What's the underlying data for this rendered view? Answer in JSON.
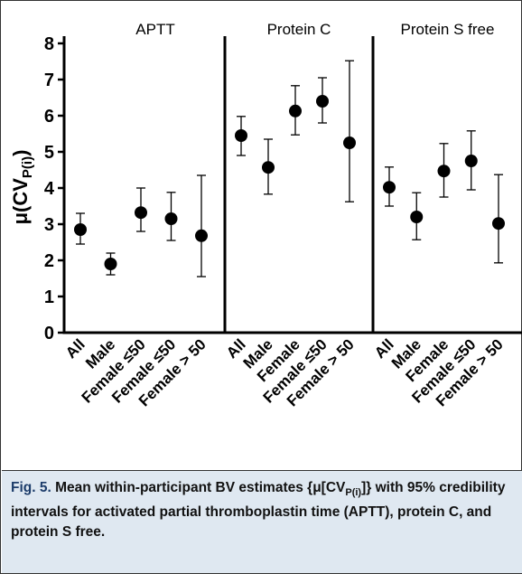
{
  "chart_data": {
    "type": "errorbar",
    "ylabel": {
      "text": "μ(CV",
      "sub": "P(i)",
      "end": ")"
    },
    "ylim": [
      0,
      8
    ],
    "yticks": [
      0,
      1,
      2,
      3,
      4,
      5,
      6,
      7,
      8
    ],
    "color": "#000000",
    "panels": [
      {
        "title": "APTT",
        "categories": [
          "All",
          "Male",
          "Female ≤50",
          "Female ≤50",
          "Female > 50"
        ],
        "values": [
          2.85,
          1.9,
          3.32,
          3.15,
          2.68
        ],
        "lower": [
          2.45,
          1.6,
          2.8,
          2.55,
          1.55
        ],
        "upper": [
          3.3,
          2.2,
          4.0,
          3.88,
          4.35
        ]
      },
      {
        "title": "Protein  C",
        "categories": [
          "All",
          "Male",
          "Female",
          "Female ≤50",
          "Female > 50"
        ],
        "values": [
          5.45,
          4.57,
          6.13,
          6.4,
          5.25
        ],
        "lower": [
          4.9,
          3.83,
          5.47,
          5.8,
          3.62
        ],
        "upper": [
          5.98,
          5.35,
          6.83,
          7.05,
          7.52
        ]
      },
      {
        "title": "Protein S free",
        "categories": [
          "All",
          "Male",
          "Female",
          "Female ≤50",
          "Female > 50"
        ],
        "values": [
          4.02,
          3.2,
          4.47,
          4.75,
          3.02
        ],
        "lower": [
          3.5,
          2.57,
          3.75,
          3.95,
          1.93
        ],
        "upper": [
          4.58,
          3.87,
          5.23,
          5.58,
          4.37
        ]
      }
    ]
  },
  "caption": {
    "label": "Fig. 5.",
    "text1": "Mean within-participant BV estimates {μ[CV",
    "sub": "P(i)",
    "text2": "]} with 95% credibility intervals for activated partial thromboplastin time (APTT), protein C, and protein S free."
  }
}
